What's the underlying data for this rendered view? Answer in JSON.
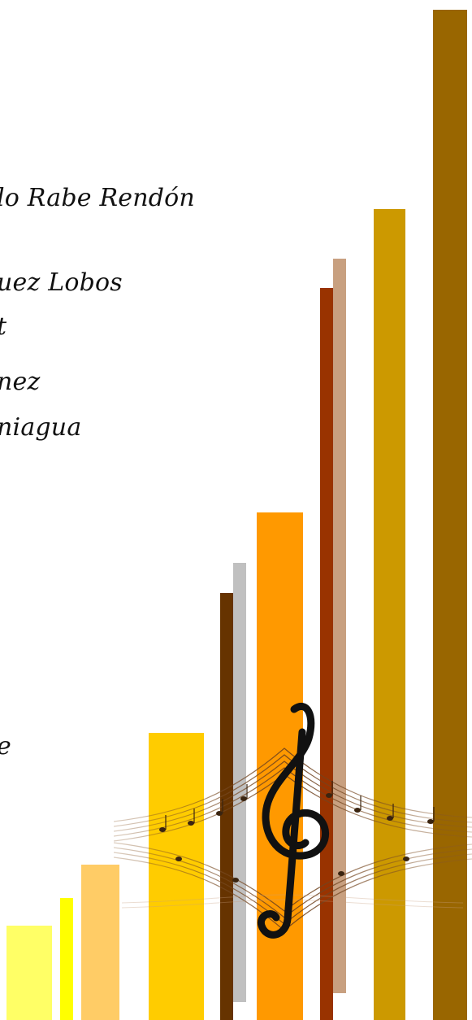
{
  "text_lines": [
    "lo Rabe Rendón",
    "uez Lobos",
    "t",
    "nez",
    "niagua",
    "e"
  ],
  "decoration": {
    "bar_colors": [
      "#ffff66",
      "#ffff00",
      "#ffcc66",
      "#ffcc00",
      "#663300",
      "#c0c0c0",
      "#ff9900",
      "#993300",
      "#c8a080",
      "#cc9900",
      "#996600"
    ],
    "icon": "treble-clef-icon"
  }
}
